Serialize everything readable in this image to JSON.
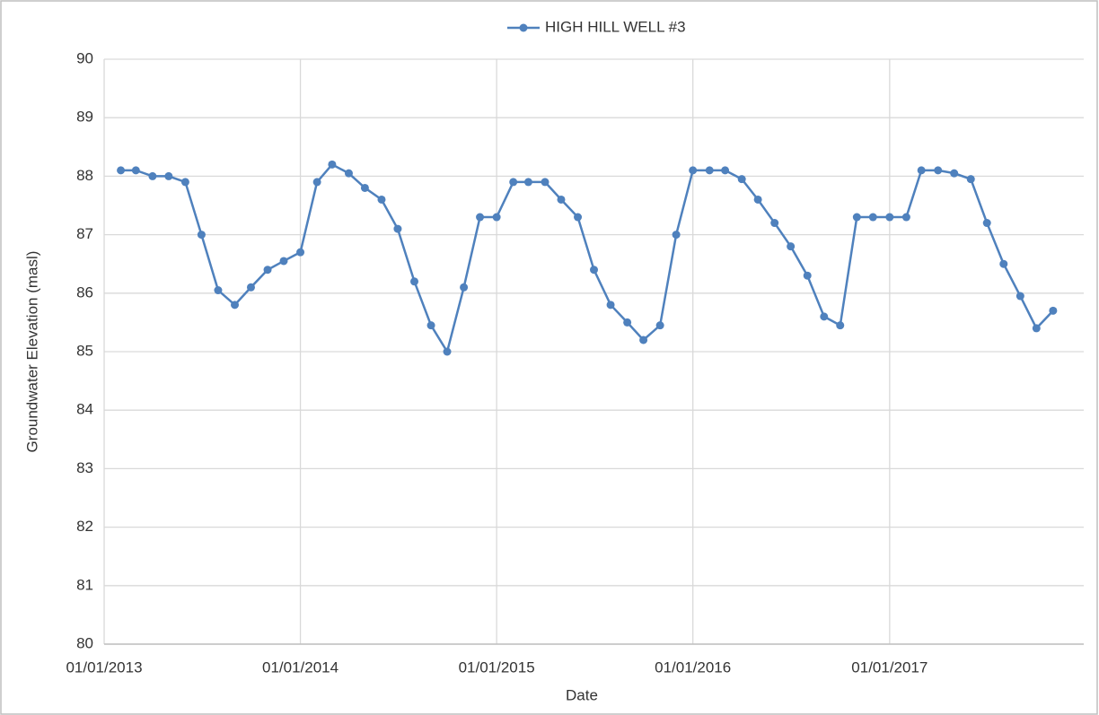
{
  "chart_data": {
    "type": "line",
    "series": [
      {
        "name": "HIGH HILL WELL #3",
        "color": "#4f81bd",
        "values": [
          88.1,
          88.1,
          88.0,
          88.0,
          87.9,
          87.0,
          86.05,
          85.8,
          86.1,
          86.4,
          86.55,
          86.7,
          87.9,
          88.2,
          88.05,
          87.8,
          87.6,
          87.1,
          86.2,
          85.45,
          85.0,
          86.1,
          87.3,
          87.3,
          87.9,
          87.9,
          87.9,
          87.6,
          87.3,
          86.4,
          85.8,
          85.5,
          85.2,
          85.45,
          87.0,
          88.1,
          88.1,
          88.1,
          87.95,
          87.6,
          87.2,
          86.8,
          86.3,
          85.6,
          85.45,
          87.3,
          87.3,
          87.3,
          87.3,
          88.1,
          88.1,
          88.05,
          87.95,
          87.2,
          86.5,
          85.95,
          85.4,
          85.7
        ]
      }
    ],
    "x": [
      "2013-02-01",
      "2013-03-01",
      "2013-04-01",
      "2013-05-01",
      "2013-06-01",
      "2013-07-01",
      "2013-08-01",
      "2013-09-01",
      "2013-10-01",
      "2013-11-01",
      "2013-12-01",
      "2014-01-01",
      "2014-02-01",
      "2014-03-01",
      "2014-04-01",
      "2014-05-01",
      "2014-06-01",
      "2014-07-01",
      "2014-08-01",
      "2014-09-01",
      "2014-10-01",
      "2014-11-01",
      "2014-12-01",
      "2015-01-01",
      "2015-02-01",
      "2015-03-01",
      "2015-04-01",
      "2015-05-01",
      "2015-06-01",
      "2015-07-01",
      "2015-08-01",
      "2015-09-01",
      "2015-10-01",
      "2015-11-01",
      "2015-12-01",
      "2016-01-01",
      "2016-02-01",
      "2016-03-01",
      "2016-04-01",
      "2016-05-01",
      "2016-06-01",
      "2016-07-01",
      "2016-08-01",
      "2016-09-01",
      "2016-10-01",
      "2016-11-01",
      "2016-12-01",
      "2017-01-01",
      "2017-02-01",
      "2017-03-01",
      "2017-04-01",
      "2017-05-01",
      "2017-06-01",
      "2017-07-01",
      "2017-08-01",
      "2017-09-01",
      "2017-10-01",
      "2017-11-01"
    ],
    "x_label": "Date",
    "y_label": "Groundwater Elevation (masl)",
    "xlim": [
      "2013-01-01",
      "2017-12-28"
    ],
    "xticks": [
      {
        "value": "2013-01-01",
        "label": "01/01/2013"
      },
      {
        "value": "2014-01-01",
        "label": "01/01/2014"
      },
      {
        "value": "2015-01-01",
        "label": "01/01/2015"
      },
      {
        "value": "2016-01-01",
        "label": "01/01/2016"
      },
      {
        "value": "2017-01-01",
        "label": "01/01/2017"
      }
    ],
    "ylim": [
      80,
      90
    ],
    "yticks": [
      80,
      81,
      82,
      83,
      84,
      85,
      86,
      87,
      88,
      89,
      90
    ],
    "grid": true,
    "legend": "top"
  }
}
